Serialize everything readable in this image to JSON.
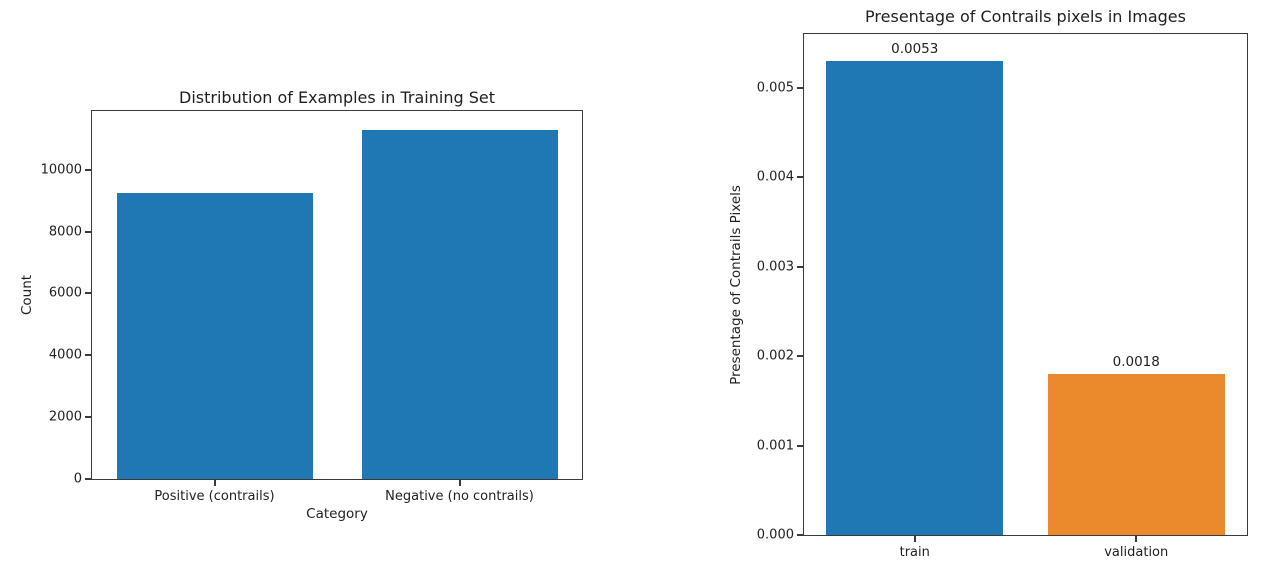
{
  "figure_background": "#ffffff",
  "axis_color": "#3a3a3a",
  "text_color": "#1f1f1f",
  "chart_data": [
    {
      "type": "bar",
      "title": "Distribution of Examples in Training Set",
      "xlabel": "Category",
      "ylabel": "Count",
      "categories": [
        "Positive (contrails)",
        "Negative (no contrails)"
      ],
      "values": [
        9250,
        11280
      ],
      "bar_colors": [
        "#1f77b4",
        "#1f77b4"
      ],
      "ylim": [
        0,
        11900
      ],
      "yticks": [
        {
          "value": 0,
          "label": "0"
        },
        {
          "value": 2000,
          "label": "2000"
        },
        {
          "value": 4000,
          "label": "4000"
        },
        {
          "value": 6000,
          "label": "6000"
        },
        {
          "value": 8000,
          "label": "8000"
        },
        {
          "value": 10000,
          "label": "10000"
        }
      ],
      "grid": false,
      "legend": "none"
    },
    {
      "type": "bar",
      "title": "Presentage of Contrails pixels in Images",
      "xlabel": "",
      "ylabel": "Presentage of Contrails Pixels",
      "categories": [
        "train",
        "validation"
      ],
      "values": [
        0.0053,
        0.0018
      ],
      "bar_labels": [
        "0.0053",
        "0.0018"
      ],
      "bar_colors": [
        "#1f77b4",
        "#ea8a2d"
      ],
      "ylim": [
        0,
        0.0056
      ],
      "yticks": [
        {
          "value": 0.0,
          "label": "0.000"
        },
        {
          "value": 0.001,
          "label": "0.001"
        },
        {
          "value": 0.002,
          "label": "0.002"
        },
        {
          "value": 0.003,
          "label": "0.003"
        },
        {
          "value": 0.004,
          "label": "0.004"
        },
        {
          "value": 0.005,
          "label": "0.005"
        }
      ],
      "grid": false,
      "legend": "none"
    }
  ]
}
